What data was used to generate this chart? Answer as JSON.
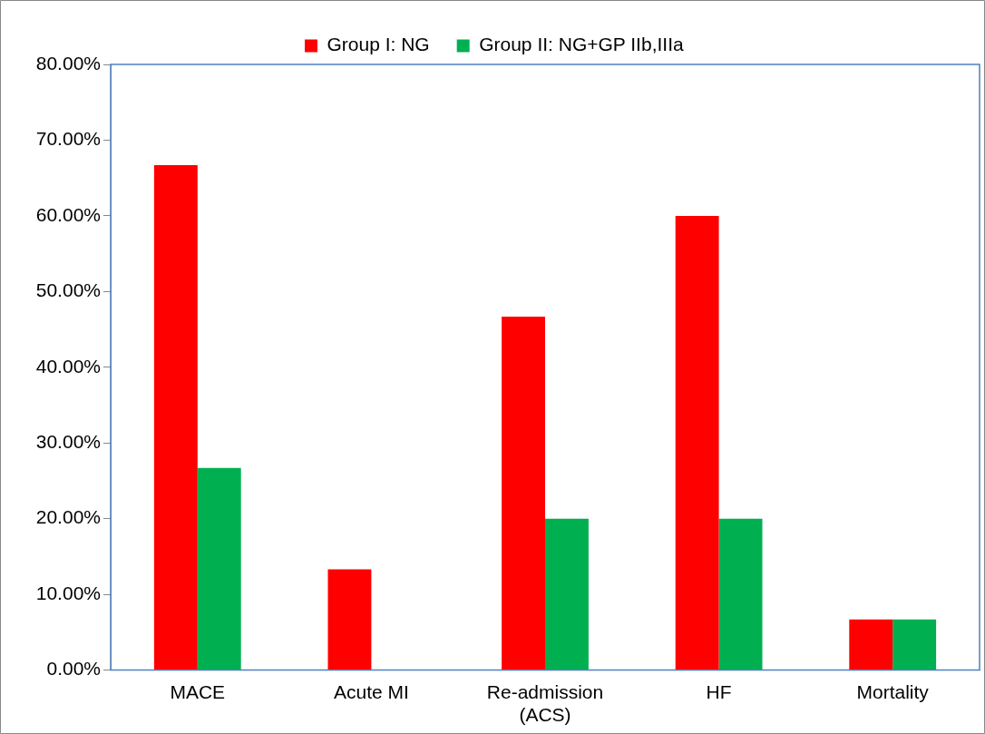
{
  "chart_data": {
    "type": "bar",
    "categories": [
      "MACE",
      "Acute MI",
      "Re-admission\n(ACS)",
      "HF",
      "Mortality"
    ],
    "series": [
      {
        "name": "Group I: NG",
        "color": "#ff0000",
        "values": [
          66.7,
          13.3,
          46.7,
          60,
          6.7
        ]
      },
      {
        "name": "Group II: NG+GP IIb,IIIa",
        "color": "#00b050",
        "values": [
          26.7,
          0,
          20,
          20,
          6.7
        ]
      }
    ],
    "ylim": [
      0,
      80
    ],
    "yticks": [
      {
        "value": 0,
        "label": "0.00%"
      },
      {
        "value": 10,
        "label": "10.00%"
      },
      {
        "value": 20,
        "label": "20.00%"
      },
      {
        "value": 30,
        "label": "30.00%"
      },
      {
        "value": 40,
        "label": "40.00%"
      },
      {
        "value": 50,
        "label": "50.00%"
      },
      {
        "value": 60,
        "label": "60.00%"
      },
      {
        "value": 70,
        "label": "70.00%"
      },
      {
        "value": 80,
        "label": "80.00%"
      }
    ],
    "grid": false,
    "legend": "top"
  }
}
